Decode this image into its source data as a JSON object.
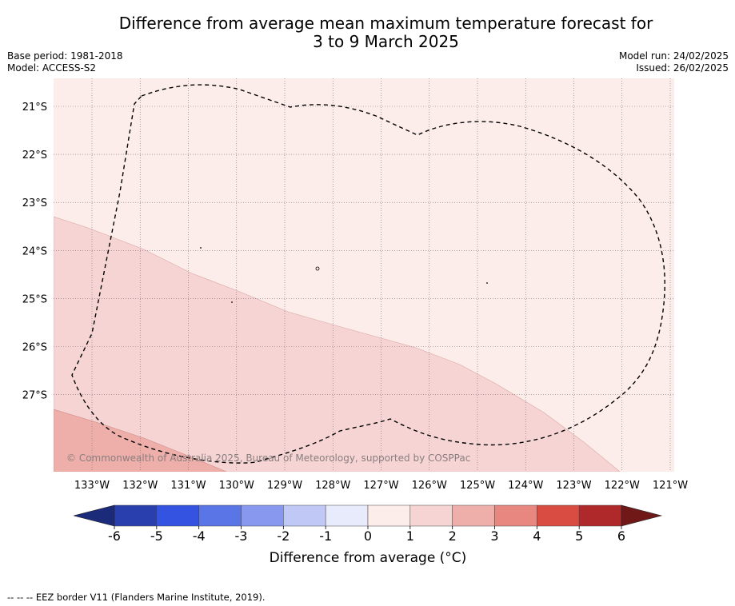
{
  "title_line1": "Difference from average mean maximum temperature forecast for",
  "title_line2": "3 to 9 March 2025",
  "base_period": "Base period: 1981-2018",
  "model": "Model: ACCESS-S2",
  "model_run": "Model run: 24/02/2025",
  "issued": "Issued: 26/02/2025",
  "copyright": "© Commonwealth of Australia 2025, Bureau of Meteorology, supported by COSPPac",
  "footnote": "--  --  -- EEZ border V11 (Flanders Marine Institute, 2019).",
  "colorbar": {
    "label": "Difference from average (°C)",
    "ticks": [
      "-6",
      "-5",
      "-4",
      "-3",
      "-2",
      "-1",
      "0",
      "1",
      "2",
      "3",
      "4",
      "5",
      "6"
    ],
    "colors": [
      "#2a3fae",
      "#3353e0",
      "#5a75e6",
      "#8798ee",
      "#c0c8f6",
      "#e8ebfb",
      "#fcecea",
      "#f5d4d3",
      "#eeaeaa",
      "#e8877f",
      "#d84c41",
      "#b0292a"
    ],
    "under_color": "#1c2a7a",
    "over_color": "#701818"
  },
  "map": {
    "lon_labels": [
      "133°W",
      "132°W",
      "131°W",
      "130°W",
      "129°W",
      "128°W",
      "127°W",
      "126°W",
      "125°W",
      "124°W",
      "123°W",
      "122°W",
      "121°W"
    ],
    "lat_labels": [
      "21°S",
      "22°S",
      "23°S",
      "24°S",
      "25°S",
      "26°S",
      "27°S"
    ],
    "background_class": "0 to 1",
    "shaded_regions": [
      {
        "class": "1 to 2",
        "color": "#f5d4d3"
      },
      {
        "class": "2 to 3",
        "color": "#eeaeaa"
      }
    ]
  }
}
